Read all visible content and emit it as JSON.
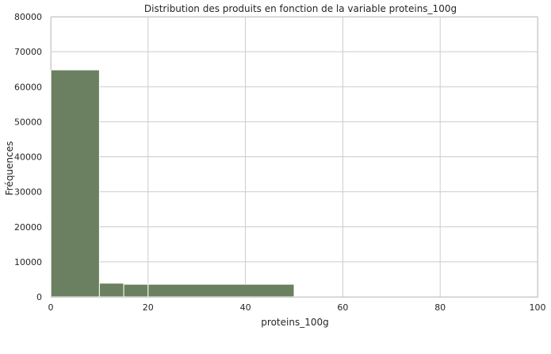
{
  "chart_data": {
    "type": "bar",
    "title": "Distribution des produits en fonction de la variable proteins_100g",
    "xlabel": "proteins_100g",
    "ylabel": "Fréquences",
    "xlim": [
      0,
      100
    ],
    "ylim": [
      0,
      80000
    ],
    "xticks": [
      "0",
      "20",
      "40",
      "60",
      "80",
      "100"
    ],
    "yticks": [
      "0",
      "10000",
      "20000",
      "30000",
      "40000",
      "50000",
      "60000",
      "70000",
      "80000"
    ],
    "grid": true,
    "bar_color": "#6b8060",
    "bins": [
      {
        "x0": 0,
        "x1": 10,
        "count": 64800
      },
      {
        "x0": 10,
        "x1": 15,
        "count": 3900
      },
      {
        "x0": 15,
        "x1": 20,
        "count": 3600
      },
      {
        "x0": 20,
        "x1": 50,
        "count": 3600
      }
    ]
  }
}
